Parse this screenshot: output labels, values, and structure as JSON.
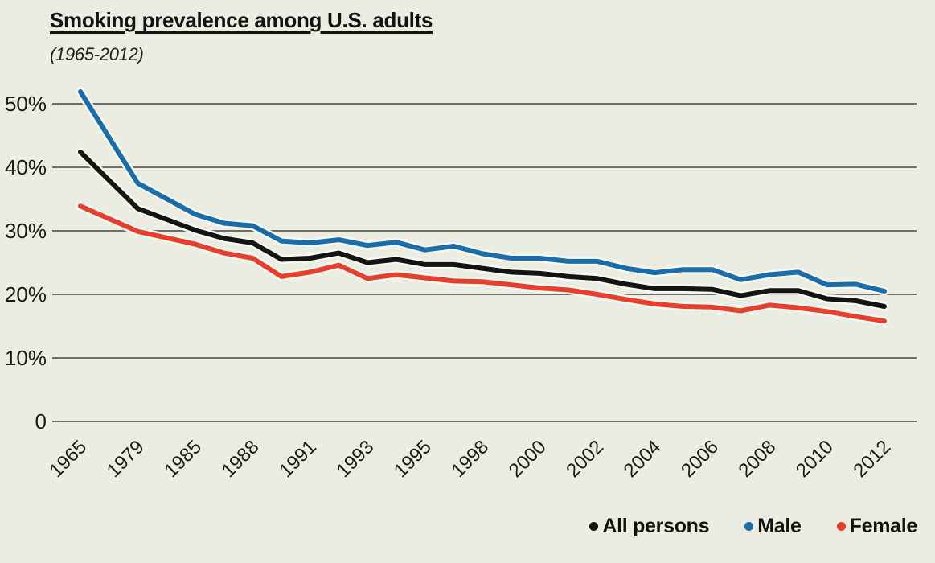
{
  "chart_data": {
    "type": "line",
    "title": "Smoking prevalence among U.S. adults",
    "subtitle": "(1965-2012)",
    "xlabel": "",
    "ylabel": "",
    "ylim": [
      0,
      52
    ],
    "grid": "horizontal",
    "legend_position": "bottom-right",
    "background_color": "#ecede2",
    "gridline_color": "#6e7067",
    "halo_color": "#f7f8f0",
    "y_ticks": [
      {
        "label": "50%",
        "value": 50
      },
      {
        "label": "40%",
        "value": 40
      },
      {
        "label": "30%",
        "value": 30
      },
      {
        "label": "20%",
        "value": 20
      },
      {
        "label": "10%",
        "value": 10
      },
      {
        "label": "0",
        "value": 0
      }
    ],
    "x_ticks": [
      {
        "label": "1965",
        "slot": 0
      },
      {
        "label": "1979",
        "slot": 1
      },
      {
        "label": "1985",
        "slot": 2
      },
      {
        "label": "1988",
        "slot": 3
      },
      {
        "label": "1991",
        "slot": 4
      },
      {
        "label": "1993",
        "slot": 5
      },
      {
        "label": "1995",
        "slot": 6
      },
      {
        "label": "1998",
        "slot": 7
      },
      {
        "label": "2000",
        "slot": 8
      },
      {
        "label": "2002",
        "slot": 9
      },
      {
        "label": "2004",
        "slot": 10
      },
      {
        "label": "2006",
        "slot": 11
      },
      {
        "label": "2008",
        "slot": 12
      },
      {
        "label": "2010",
        "slot": 13
      },
      {
        "label": "2012",
        "slot": 14
      }
    ],
    "x_years": [
      1965,
      1979,
      1985,
      1987,
      1988,
      1990,
      1991,
      1992,
      1993,
      1994,
      1995,
      1997,
      1998,
      1999,
      2000,
      2001,
      2002,
      2003,
      2004,
      2005,
      2006,
      2007,
      2008,
      2009,
      2010,
      2011,
      2012
    ],
    "x_slots": [
      0,
      1,
      2,
      2.5,
      3,
      3.5,
      4,
      4.5,
      5,
      5.5,
      6,
      6.5,
      7,
      7.5,
      8,
      8.5,
      9,
      9.5,
      10,
      10.5,
      11,
      11.5,
      12,
      12.5,
      13,
      13.5,
      14
    ],
    "series": [
      {
        "id": "all-persons",
        "name": "All persons",
        "color": "#141413",
        "values": [
          42.4,
          33.5,
          30.1,
          28.8,
          28.1,
          25.5,
          25.7,
          26.5,
          25.0,
          25.5,
          24.7,
          24.7,
          24.1,
          23.5,
          23.3,
          22.8,
          22.5,
          21.6,
          20.9,
          20.9,
          20.8,
          19.8,
          20.6,
          20.6,
          19.3,
          19.0,
          18.1
        ]
      },
      {
        "id": "male",
        "name": "Male",
        "color": "#1a6dab",
        "values": [
          51.9,
          37.5,
          32.6,
          31.2,
          30.8,
          28.4,
          28.1,
          28.6,
          27.7,
          28.2,
          27.0,
          27.6,
          26.4,
          25.7,
          25.7,
          25.2,
          25.2,
          24.1,
          23.4,
          23.9,
          23.9,
          22.3,
          23.1,
          23.5,
          21.5,
          21.6,
          20.5
        ]
      },
      {
        "id": "female",
        "name": "Female",
        "color": "#e73e2d",
        "values": [
          33.9,
          29.9,
          27.9,
          26.5,
          25.7,
          22.8,
          23.5,
          24.6,
          22.5,
          23.1,
          22.6,
          22.1,
          22.0,
          21.5,
          21.0,
          20.7,
          20.0,
          19.2,
          18.5,
          18.1,
          18.0,
          17.4,
          18.3,
          17.9,
          17.3,
          16.5,
          15.8
        ]
      }
    ]
  }
}
